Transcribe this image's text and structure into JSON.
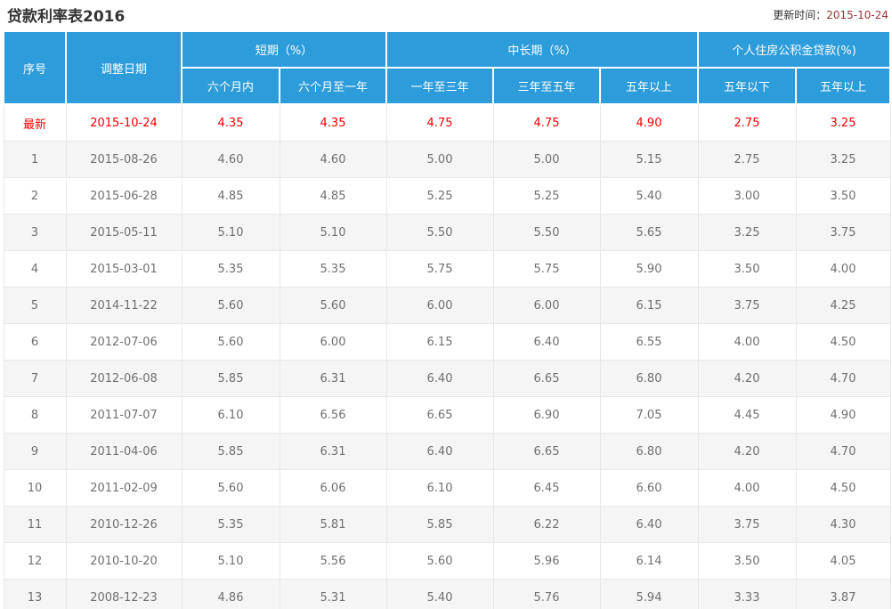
{
  "page": {
    "title": "贷款利率表2016",
    "update_label": "更新时间：",
    "update_value": "2015-10-24"
  },
  "chart_data": {
    "type": "table",
    "title": "贷款利率表2016",
    "column_groups": [
      {
        "label": "短期（%）",
        "span": 2
      },
      {
        "label": "中长期（%）",
        "span": 3
      },
      {
        "label": "个人住房公积金贷款(%)",
        "span": 2
      }
    ],
    "columns": [
      "序号",
      "调整日期",
      "六个月内",
      "六个月至一年",
      "一年至三年",
      "三年至五年",
      "五年以上",
      "五年以下",
      "五年以上"
    ],
    "highlight_row": 0,
    "rows": [
      [
        "最新",
        "2015-10-24",
        "4.35",
        "4.35",
        "4.75",
        "4.75",
        "4.90",
        "2.75",
        "3.25"
      ],
      [
        "1",
        "2015-08-26",
        "4.60",
        "4.60",
        "5.00",
        "5.00",
        "5.15",
        "2.75",
        "3.25"
      ],
      [
        "2",
        "2015-06-28",
        "4.85",
        "4.85",
        "5.25",
        "5.25",
        "5.40",
        "3.00",
        "3.50"
      ],
      [
        "3",
        "2015-05-11",
        "5.10",
        "5.10",
        "5.50",
        "5.50",
        "5.65",
        "3.25",
        "3.75"
      ],
      [
        "4",
        "2015-03-01",
        "5.35",
        "5.35",
        "5.75",
        "5.75",
        "5.90",
        "3.50",
        "4.00"
      ],
      [
        "5",
        "2014-11-22",
        "5.60",
        "5.60",
        "6.00",
        "6.00",
        "6.15",
        "3.75",
        "4.25"
      ],
      [
        "6",
        "2012-07-06",
        "5.60",
        "6.00",
        "6.15",
        "6.40",
        "6.55",
        "4.00",
        "4.50"
      ],
      [
        "7",
        "2012-06-08",
        "5.85",
        "6.31",
        "6.40",
        "6.65",
        "6.80",
        "4.20",
        "4.70"
      ],
      [
        "8",
        "2011-07-07",
        "6.10",
        "6.56",
        "6.65",
        "6.90",
        "7.05",
        "4.45",
        "4.90"
      ],
      [
        "9",
        "2011-04-06",
        "5.85",
        "6.31",
        "6.40",
        "6.65",
        "6.80",
        "4.20",
        "4.70"
      ],
      [
        "10",
        "2011-02-09",
        "5.60",
        "6.06",
        "6.10",
        "6.45",
        "6.60",
        "4.00",
        "4.50"
      ],
      [
        "11",
        "2010-12-26",
        "5.35",
        "5.81",
        "5.85",
        "6.22",
        "6.40",
        "3.75",
        "4.30"
      ],
      [
        "12",
        "2010-10-20",
        "5.10",
        "5.56",
        "5.60",
        "5.96",
        "6.14",
        "3.50",
        "4.05"
      ],
      [
        "13",
        "2008-12-23",
        "4.86",
        "5.31",
        "5.40",
        "5.76",
        "5.94",
        "3.33",
        "3.87"
      ]
    ]
  },
  "colors": {
    "header_bg": "#2d9cdb",
    "highlight_text": "#ff0000",
    "update_date_text": "#993333",
    "alt_row_bg": "#f5f5f5",
    "body_text": "#707070",
    "border": "#e8e8e8",
    "title_text": "#333333"
  }
}
